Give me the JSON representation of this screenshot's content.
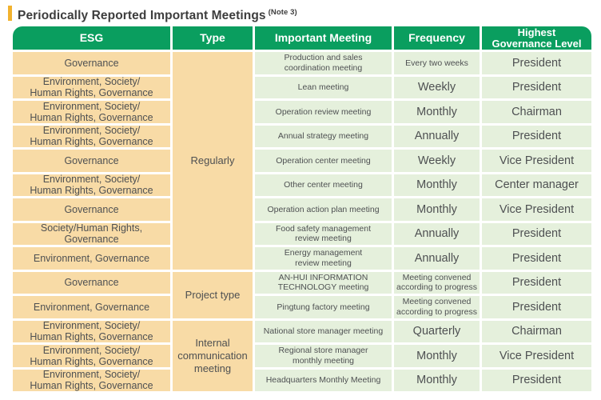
{
  "title": {
    "text": "Periodically Reported Important Meetings",
    "note": "(Note 3)"
  },
  "colors": {
    "header_green": "#0A9E5F",
    "cell_orange": "#F8DBA6",
    "cell_light_green": "#E5F0DC",
    "accent_gold": "#F2B22E",
    "cell_text": "#4E5052",
    "title_text": "#3D3D3D",
    "header_text": "#FFFFFF"
  },
  "table": {
    "columns": [
      "ESG",
      "Type",
      "Important Meeting",
      "Frequency",
      "Highest\nGovernance Level"
    ],
    "type_groups": [
      {
        "label": "Regularly",
        "span": 9
      },
      {
        "label": "Project type",
        "span": 2
      },
      {
        "label": "Internal\ncommunication\nmeeting",
        "span": 3
      }
    ],
    "rows": [
      {
        "esg": "Governance",
        "meeting": "Production and sales\ncoordination meeting",
        "frequency": "Every two weeks",
        "level": "President"
      },
      {
        "esg": "Environment, Society/\nHuman Rights, Governance",
        "meeting": "Lean meeting",
        "frequency": "Weekly",
        "level": "President"
      },
      {
        "esg": "Environment, Society/\nHuman Rights, Governance",
        "meeting": "Operation review meeting",
        "frequency": "Monthly",
        "level": "Chairman"
      },
      {
        "esg": "Environment, Society/\nHuman Rights, Governance",
        "meeting": "Annual strategy meeting",
        "frequency": "Annually",
        "level": "President"
      },
      {
        "esg": "Governance",
        "meeting": "Operation center meeting",
        "frequency": "Weekly",
        "level": "Vice President"
      },
      {
        "esg": "Environment, Society/\nHuman Rights, Governance",
        "meeting": "Other center meeting",
        "frequency": "Monthly",
        "level": "Center manager"
      },
      {
        "esg": "Governance",
        "meeting": "Operation action plan meeting",
        "frequency": "Monthly",
        "level": "Vice President"
      },
      {
        "esg": "Society/Human Rights,\nGovernance",
        "meeting": "Food safety management\nreview meeting",
        "frequency": "Annually",
        "level": "President"
      },
      {
        "esg": "Environment, Governance",
        "meeting": "Energy management\nreview meeting",
        "frequency": "Annually",
        "level": "President"
      },
      {
        "esg": "Governance",
        "meeting": "AN-HUI INFORMATION\nTECHNOLOGY meeting",
        "frequency": "Meeting convened\naccording to progress",
        "level": "President"
      },
      {
        "esg": "Environment, Governance",
        "meeting": "Pingtung factory meeting",
        "frequency": "Meeting convened\naccording to progress",
        "level": "President"
      },
      {
        "esg": "Environment, Society/\nHuman Rights, Governance",
        "meeting": "National store manager meeting",
        "frequency": "Quarterly",
        "level": "Chairman"
      },
      {
        "esg": "Environment, Society/\nHuman Rights, Governance",
        "meeting": "Regional store manager\nmonthly meeting",
        "frequency": "Monthly",
        "level": "Vice President"
      },
      {
        "esg": "Environment, Society/\nHuman Rights, Governance",
        "meeting": "Headquarters Monthly Meeting",
        "frequency": "Monthly",
        "level": "President"
      }
    ]
  }
}
